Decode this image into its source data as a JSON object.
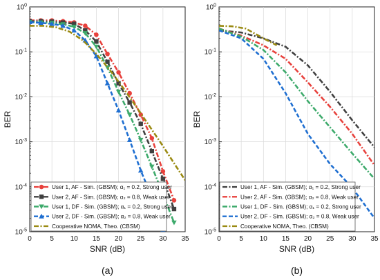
{
  "chart_data": [
    {
      "type": "line",
      "panel_label": "(a)",
      "xlabel": "SNR (dB)",
      "ylabel": "BER",
      "xscale": "linear",
      "yscale": "log",
      "xlim": [
        0,
        35
      ],
      "ylim": [
        1e-05,
        1
      ],
      "xticks": [
        0,
        5,
        10,
        15,
        20,
        25,
        30,
        35
      ],
      "ytick_exponents": [
        0,
        -1,
        -2,
        -3,
        -4,
        -5
      ],
      "grid": true,
      "legend_position": "bottom-left",
      "series": [
        {
          "name": "User 1, AF - Sim. (GBSM); α₁ = 0.2, Strong user",
          "color": "#e8413c",
          "dash": "dashdot",
          "marker": "circle",
          "x": [
            0,
            2.5,
            5,
            7.5,
            10,
            12.5,
            15,
            17.5,
            20,
            22.5,
            25,
            27.5,
            30,
            32.5
          ],
          "y": [
            0.5,
            0.5,
            0.5,
            0.48,
            0.45,
            0.38,
            0.24,
            0.09,
            0.035,
            0.012,
            0.004,
            0.0012,
            0.00022,
            5e-05
          ]
        },
        {
          "name": "User 2, AF - Sim. (GBSM); α₂ = 0.8, Weak user",
          "color": "#404040",
          "dash": "dashdot",
          "marker": "square",
          "x": [
            0,
            2.5,
            5,
            7.5,
            10,
            12.5,
            15,
            17.5,
            20,
            22.5,
            25,
            27.5,
            30,
            32.5
          ],
          "y": [
            0.48,
            0.48,
            0.47,
            0.45,
            0.42,
            0.3,
            0.17,
            0.06,
            0.02,
            0.0075,
            0.0025,
            0.00062,
            0.00015,
            3.2e-05
          ]
        },
        {
          "name": "User 1, DF - Sim. (GBSM); α₁ = 0.2, Strong user",
          "color": "#3daa6b",
          "dash": "dashdot",
          "marker": "triangle-down",
          "x": [
            0,
            2.5,
            5,
            7.5,
            10,
            12.5,
            15,
            17.5,
            20,
            22.5,
            25,
            27.5,
            30,
            32.5
          ],
          "y": [
            0.46,
            0.45,
            0.44,
            0.41,
            0.36,
            0.26,
            0.13,
            0.045,
            0.013,
            0.004,
            0.0011,
            0.00028,
            6.8e-05,
            1.6e-05
          ]
        },
        {
          "name": "User 2, DF - Sim. (GBSM); α₂ = 0.8, Weak user",
          "color": "#1f6fd1",
          "dash": "dashed",
          "marker": "triangle-up",
          "x": [
            0,
            2.5,
            5,
            7.5,
            10,
            12.5,
            15,
            17.5,
            20,
            22.5,
            25,
            27.5,
            30
          ],
          "y": [
            0.46,
            0.44,
            0.42,
            0.38,
            0.3,
            0.18,
            0.08,
            0.02,
            0.005,
            0.0011,
            0.00023,
            5.8e-05,
            1.1e-05
          ]
        },
        {
          "name": "Cooperative NOMA, Theo. (CBSM)",
          "color": "#9a8a12",
          "dash": "dashdot",
          "marker": "none",
          "x": [
            0,
            3,
            6,
            9,
            12,
            15,
            18,
            21,
            24,
            27,
            30,
            33,
            35
          ],
          "y": [
            0.38,
            0.38,
            0.35,
            0.28,
            0.18,
            0.09,
            0.04,
            0.016,
            0.006,
            0.0022,
            0.0008,
            0.00028,
            0.00014
          ]
        }
      ]
    },
    {
      "type": "line",
      "panel_label": "(b)",
      "xlabel": "SNR (dB)",
      "ylabel": "BER",
      "xscale": "linear",
      "yscale": "log",
      "xlim": [
        0,
        35
      ],
      "ylim": [
        1e-05,
        1
      ],
      "xticks": [
        0,
        5,
        10,
        15,
        20,
        25,
        30,
        35
      ],
      "ytick_exponents": [
        0,
        -1,
        -2,
        -3,
        -4,
        -5
      ],
      "grid": true,
      "legend_position": "bottom-left",
      "series": [
        {
          "name": "User 1, AF - Sim. (GBSM); α₁ = 0.2, Strong user",
          "color": "#404040",
          "dash": "dashdot",
          "marker": "none",
          "x": [
            0,
            5,
            10,
            15,
            20,
            25,
            30,
            35
          ],
          "y": [
            0.3,
            0.27,
            0.2,
            0.13,
            0.05,
            0.013,
            0.003,
            0.00075
          ]
        },
        {
          "name": "User 2, AF - Sim. (GBSM); α₂ = 0.8, Weak user",
          "color": "#e8413c",
          "dash": "dashdot",
          "marker": "none",
          "x": [
            0,
            5,
            10,
            15,
            20,
            25,
            30,
            35
          ],
          "y": [
            0.33,
            0.23,
            0.14,
            0.07,
            0.021,
            0.006,
            0.0015,
            0.0003
          ]
        },
        {
          "name": "User 1, DF - Sim. (GBSM); α₁ = 0.2, Strong user",
          "color": "#3daa6b",
          "dash": "dashdot",
          "marker": "none",
          "x": [
            0,
            5,
            10,
            15,
            20,
            25,
            30,
            35
          ],
          "y": [
            0.33,
            0.22,
            0.11,
            0.035,
            0.008,
            0.0021,
            0.00055,
            0.00015
          ]
        },
        {
          "name": "User 2, DF - Sim. (GBSM); α₂ = 0.8, Weak user",
          "color": "#1f6fd1",
          "dash": "dashed",
          "marker": "none",
          "x": [
            0,
            5,
            10,
            15,
            20,
            25,
            30,
            35
          ],
          "y": [
            0.3,
            0.2,
            0.07,
            0.012,
            0.0015,
            0.00032,
            9.5e-05,
            2e-05
          ]
        },
        {
          "name": "Cooperative NOMA, Theo. (CBSM)",
          "color": "#9a8a12",
          "dash": "dashdot",
          "marker": "none",
          "x": [
            0,
            3,
            6,
            10,
            13
          ],
          "y": [
            0.38,
            0.37,
            0.33,
            0.2,
            0.14
          ]
        }
      ]
    }
  ]
}
